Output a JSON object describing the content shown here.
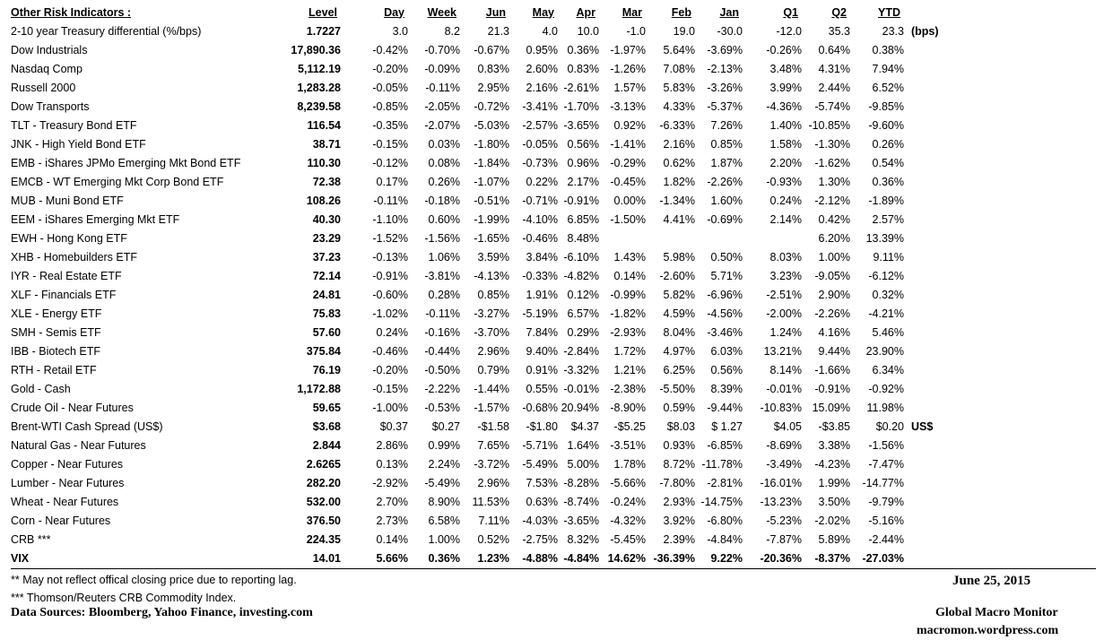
{
  "table": {
    "headers": [
      "Other Risk Indicators :",
      "Level",
      "Day",
      "Week",
      "Jun",
      "May",
      "Apr",
      "Mar",
      "Feb",
      "Jan",
      "Q1",
      "Q2",
      "YTD"
    ],
    "rows": [
      {
        "cells": [
          "2-10 year Treasury differential (%/bps)",
          "1.7227",
          "3.0",
          "8.2",
          "21.3",
          "4.0",
          "10.0",
          "-1.0",
          "19.0",
          "-30.0",
          "-12.0",
          "35.3",
          "23.3"
        ],
        "unit": "(bps)"
      },
      {
        "cells": [
          "Dow Industrials",
          "17,890.36",
          "-0.42%",
          "-0.70%",
          "-0.67%",
          "0.95%",
          "0.36%",
          "-1.97%",
          "5.64%",
          "-3.69%",
          "-0.26%",
          "0.64%",
          "0.38%"
        ]
      },
      {
        "cells": [
          "Nasdaq Comp",
          "5,112.19",
          "-0.20%",
          "-0.09%",
          "0.83%",
          "2.60%",
          "0.83%",
          "-1.26%",
          "7.08%",
          "-2.13%",
          "3.48%",
          "4.31%",
          "7.94%"
        ]
      },
      {
        "cells": [
          "Russell 2000",
          "1,283.28",
          "-0.05%",
          "-0.11%",
          "2.95%",
          "2.16%",
          "-2.61%",
          "1.57%",
          "5.83%",
          "-3.26%",
          "3.99%",
          "2.44%",
          "6.52%"
        ]
      },
      {
        "cells": [
          "Dow Transports",
          "8,239.58",
          "-0.85%",
          "-2.05%",
          "-0.72%",
          "-3.41%",
          "-1.70%",
          "-3.13%",
          "4.33%",
          "-5.37%",
          "-4.36%",
          "-5.74%",
          "-9.85%"
        ]
      },
      {
        "cells": [
          "TLT - Treasury Bond ETF",
          "116.54",
          "-0.35%",
          "-2.07%",
          "-5.03%",
          "-2.57%",
          "-3.65%",
          "0.92%",
          "-6.33%",
          "7.26%",
          "1.40%",
          "-10.85%",
          "-9.60%"
        ]
      },
      {
        "cells": [
          "JNK - High Yield Bond ETF",
          "38.71",
          "-0.15%",
          "0.03%",
          "-1.80%",
          "-0.05%",
          "0.56%",
          "-1.41%",
          "2.16%",
          "0.85%",
          "1.58%",
          "-1.30%",
          "0.26%"
        ]
      },
      {
        "cells": [
          "EMB - iShares JPMo Emerging Mkt Bond ETF",
          "110.30",
          "-0.12%",
          "0.08%",
          "-1.84%",
          "-0.73%",
          "0.96%",
          "-0.29%",
          "0.62%",
          "1.87%",
          "2.20%",
          "-1.62%",
          "0.54%"
        ]
      },
      {
        "cells": [
          "EMCB - WT Emerging Mkt Corp Bond ETF",
          "72.38",
          "0.17%",
          "0.26%",
          "-1.07%",
          "0.22%",
          "2.17%",
          "-0.45%",
          "1.82%",
          "-2.26%",
          "-0.93%",
          "1.30%",
          "0.36%"
        ]
      },
      {
        "cells": [
          "MUB - Muni Bond ETF",
          "108.26",
          "-0.11%",
          "-0.18%",
          "-0.51%",
          "-0.71%",
          "-0.91%",
          "0.00%",
          "-1.34%",
          "1.60%",
          "0.24%",
          "-2.12%",
          "-1.89%"
        ]
      },
      {
        "cells": [
          "EEM - iShares Emerging Mkt ETF",
          "40.30",
          "-1.10%",
          "0.60%",
          "-1.99%",
          "-4.10%",
          "6.85%",
          "-1.50%",
          "4.41%",
          "-0.69%",
          "2.14%",
          "0.42%",
          "2.57%"
        ]
      },
      {
        "cells": [
          "EWH - Hong Kong ETF",
          "23.29",
          "-1.52%",
          "-1.56%",
          "-1.65%",
          "-0.46%",
          "8.48%",
          "",
          "",
          "",
          "",
          "6.20%",
          "13.39%"
        ]
      },
      {
        "cells": [
          "XHB - Homebuilders ETF",
          "37.23",
          "-0.13%",
          "1.06%",
          "3.59%",
          "3.84%",
          "-6.10%",
          "1.43%",
          "5.98%",
          "0.50%",
          "8.03%",
          "1.00%",
          "9.11%"
        ]
      },
      {
        "cells": [
          "IYR - Real Estate ETF",
          "72.14",
          "-0.91%",
          "-3.81%",
          "-4.13%",
          "-0.33%",
          "-4.82%",
          "0.14%",
          "-2.60%",
          "5.71%",
          "3.23%",
          "-9.05%",
          "-6.12%"
        ]
      },
      {
        "cells": [
          "XLF - Financials ETF",
          "24.81",
          "-0.60%",
          "0.28%",
          "0.85%",
          "1.91%",
          "0.12%",
          "-0.99%",
          "5.82%",
          "-6.96%",
          "-2.51%",
          "2.90%",
          "0.32%"
        ]
      },
      {
        "cells": [
          "XLE - Energy ETF",
          "75.83",
          "-1.02%",
          "-0.11%",
          "-3.27%",
          "-5.19%",
          "6.57%",
          "-1.82%",
          "4.59%",
          "-4.56%",
          "-2.00%",
          "-2.26%",
          "-4.21%"
        ]
      },
      {
        "cells": [
          "SMH - Semis ETF",
          "57.60",
          "0.24%",
          "-0.16%",
          "-3.70%",
          "7.84%",
          "0.29%",
          "-2.93%",
          "8.04%",
          "-3.46%",
          "1.24%",
          "4.16%",
          "5.46%"
        ]
      },
      {
        "cells": [
          "IBB - Biotech ETF",
          "375.84",
          "-0.46%",
          "-0.44%",
          "2.96%",
          "9.40%",
          "-2.84%",
          "1.72%",
          "4.97%",
          "6.03%",
          "13.21%",
          "9.44%",
          "23.90%"
        ]
      },
      {
        "cells": [
          "RTH - Retail ETF",
          "76.19",
          "-0.20%",
          "-0.50%",
          "0.79%",
          "0.91%",
          "-3.32%",
          "1.21%",
          "6.25%",
          "0.56%",
          "8.14%",
          "-1.66%",
          "6.34%"
        ]
      },
      {
        "cells": [
          "Gold - Cash",
          "1,172.88",
          "-0.15%",
          "-2.22%",
          "-1.44%",
          "0.55%",
          "-0.01%",
          "-2.38%",
          "-5.50%",
          "8.39%",
          "-0.01%",
          "-0.91%",
          "-0.92%"
        ]
      },
      {
        "cells": [
          "Crude Oil - Near Futures",
          "59.65",
          "-1.00%",
          "-0.53%",
          "-1.57%",
          "-0.68%",
          "20.94%",
          "-8.90%",
          "0.59%",
          "-9.44%",
          "-10.83%",
          "15.09%",
          "11.98%"
        ]
      },
      {
        "cells": [
          "Brent-WTI Cash Spread (US$)",
          "$3.68",
          "$0.37",
          "$0.27",
          "-$1.58",
          "-$1.80",
          "$4.37",
          "-$5.25",
          "$8.03",
          "$ 1.27",
          "$4.05",
          "-$3.85",
          "$0.20"
        ],
        "unit": "US$"
      },
      {
        "cells": [
          "Natural Gas - Near Futures",
          "2.844",
          "2.86%",
          "0.99%",
          "7.65%",
          "-5.71%",
          "1.64%",
          "-3.51%",
          "0.93%",
          "-6.85%",
          "-8.69%",
          "3.38%",
          "-1.56%"
        ]
      },
      {
        "cells": [
          "Copper - Near Futures",
          "2.6265",
          "0.13%",
          "2.24%",
          "-3.72%",
          "-5.49%",
          "5.00%",
          "1.78%",
          "8.72%",
          "-11.78%",
          "-3.49%",
          "-4.23%",
          "-7.47%"
        ]
      },
      {
        "cells": [
          "Lumber - Near Futures",
          "282.20",
          "-2.92%",
          "-5.49%",
          "2.96%",
          "7.53%",
          "-8.28%",
          "-5.66%",
          "-7.80%",
          "-2.81%",
          "-16.01%",
          "1.99%",
          "-14.77%"
        ]
      },
      {
        "cells": [
          "Wheat - Near Futures",
          "532.00",
          "2.70%",
          "8.90%",
          "11.53%",
          "0.63%",
          "-8.74%",
          "-0.24%",
          "2.93%",
          "-14.75%",
          "-13.23%",
          "3.50%",
          "-9.79%"
        ]
      },
      {
        "cells": [
          "Corn - Near Futures",
          "376.50",
          "2.73%",
          "6.58%",
          "7.11%",
          "-4.03%",
          "-3.65%",
          "-4.32%",
          "3.92%",
          "-6.80%",
          "-5.23%",
          "-2.02%",
          "-5.16%"
        ]
      },
      {
        "cells": [
          "CRB ***",
          "224.35",
          "0.14%",
          "1.00%",
          "0.52%",
          "-2.75%",
          "8.32%",
          "-5.45%",
          "2.39%",
          "-4.84%",
          "-7.87%",
          "5.89%",
          "-2.44%"
        ]
      },
      {
        "cells": [
          "VIX",
          "14.01",
          "5.66%",
          "0.36%",
          "1.23%",
          "-4.88%",
          "-4.84%",
          "14.62%",
          "-36.39%",
          "9.22%",
          "-20.36%",
          "-8.37%",
          "-27.03%"
        ],
        "bold": true
      }
    ]
  },
  "footer": {
    "note1": "**  May not reflect offical closing price due to reporting lag.",
    "note2": "*** Thomson/Reuters CRB Commodity Index.",
    "sources": "Data Sources:  Bloomberg,  Yahoo Finance, investing.com",
    "date": "June 25, 2015",
    "brand": "Global Macro Monitor",
    "site": "macromon.wordpress.com"
  }
}
